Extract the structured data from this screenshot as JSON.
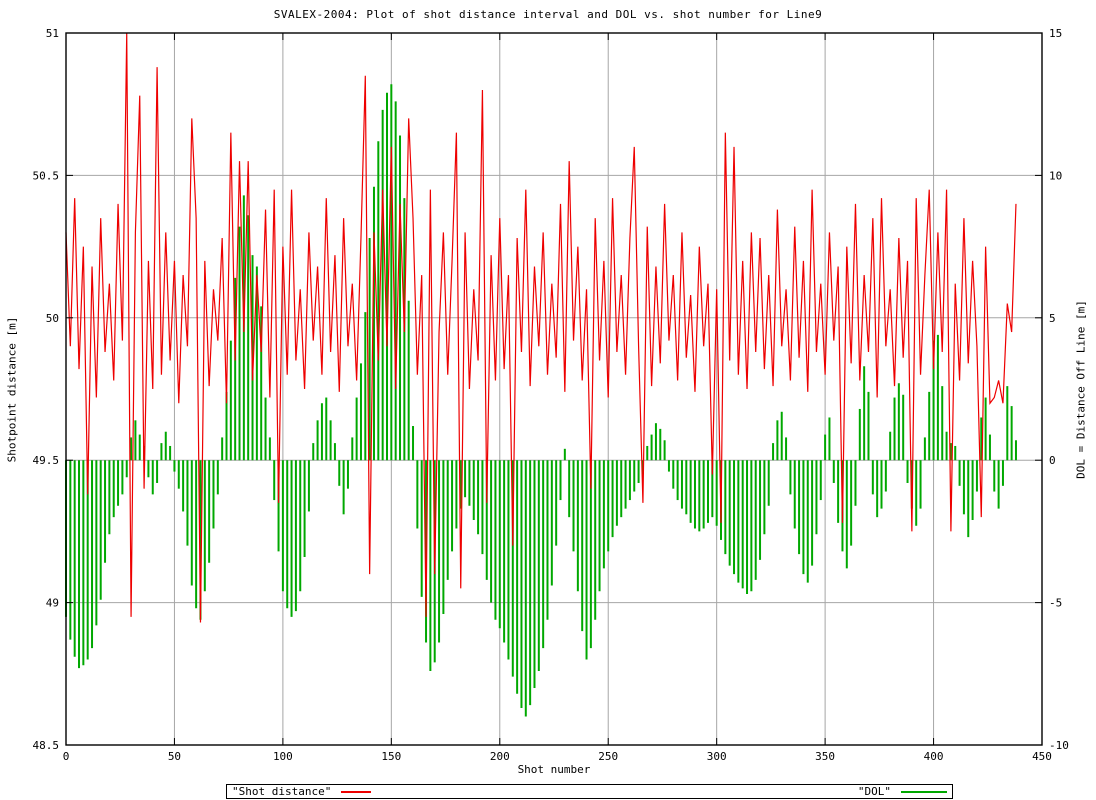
{
  "title": "SVALEX-2004: Plot of shot distance interval and DOL vs. shot number for Line9",
  "colors": {
    "red": "#ee0000",
    "green": "#00a800",
    "grid": "#a6a6a6",
    "border": "#000000",
    "background": "#ffffff",
    "text": "#000000"
  },
  "legend": {
    "items": [
      {
        "label": "\"Shot distance\"",
        "color": "#ee0000"
      },
      {
        "label": "\"DOL\"",
        "color": "#00a800"
      }
    ]
  },
  "chart_data": {
    "type": "line",
    "title": "SVALEX-2004: Plot of shot distance interval and DOL vs. shot number for Line9",
    "xlabel": "Shot number",
    "ylabel_left": "Shotpoint distance [m]",
    "ylabel_right": "DOL = Distance Off Line [m]",
    "x_range": [
      0,
      450
    ],
    "y_left_range": [
      48.5,
      51
    ],
    "y_right_range": [
      -10,
      15
    ],
    "x_ticks": [
      0,
      50,
      100,
      150,
      200,
      250,
      300,
      350,
      400,
      450
    ],
    "y_left_ticks": [
      48.5,
      49,
      49.5,
      50,
      50.5,
      51
    ],
    "y_right_ticks": [
      -10,
      -5,
      0,
      5,
      10,
      15
    ],
    "grid": true,
    "legend_position": "bottom",
    "x_start": 0,
    "x_step": 2,
    "series": [
      {
        "name": "Shot distance",
        "style": "line",
        "axis": "left",
        "color": "#ee0000",
        "values": [
          50.3,
          49.9,
          50.42,
          49.82,
          50.25,
          49.38,
          50.18,
          49.72,
          50.35,
          49.88,
          50.12,
          49.78,
          50.4,
          49.92,
          51.0,
          48.95,
          50.3,
          50.78,
          49.4,
          50.2,
          49.75,
          50.88,
          49.8,
          50.3,
          49.85,
          50.2,
          49.7,
          50.15,
          49.9,
          50.7,
          50.35,
          48.93,
          50.2,
          49.76,
          50.1,
          49.92,
          50.28,
          49.7,
          50.65,
          49.85,
          50.55,
          49.95,
          50.55,
          49.78,
          50.15,
          49.88,
          50.38,
          49.72,
          50.45,
          49.35,
          50.25,
          49.8,
          50.45,
          49.85,
          50.1,
          49.75,
          50.3,
          49.92,
          50.18,
          49.8,
          50.42,
          49.88,
          50.22,
          49.74,
          50.35,
          49.9,
          50.12,
          49.78,
          50.28,
          50.85,
          49.1,
          50.3,
          49.85,
          50.45,
          49.9,
          50.6,
          49.75,
          50.4,
          49.95,
          50.7,
          50.35,
          49.8,
          50.15,
          48.95,
          50.45,
          49.1,
          49.95,
          50.3,
          49.8,
          50.2,
          50.65,
          49.05,
          50.3,
          49.75,
          50.1,
          49.85,
          50.8,
          49.35,
          50.22,
          49.78,
          50.35,
          49.82,
          50.15,
          49.2,
          50.28,
          49.88,
          50.45,
          49.76,
          50.18,
          49.9,
          50.3,
          49.8,
          50.12,
          49.86,
          50.4,
          49.74,
          50.55,
          49.92,
          50.25,
          49.78,
          50.1,
          49.4,
          50.35,
          49.85,
          50.2,
          49.72,
          50.42,
          49.88,
          50.15,
          49.8,
          50.28,
          50.6,
          49.9,
          49.35,
          50.32,
          49.76,
          50.18,
          49.84,
          50.4,
          49.92,
          50.15,
          49.78,
          50.3,
          49.86,
          50.08,
          49.74,
          50.25,
          49.9,
          50.12,
          49.45,
          50.1,
          49.28,
          50.65,
          49.85,
          50.6,
          49.8,
          50.2,
          49.75,
          50.3,
          49.88,
          50.28,
          49.82,
          50.15,
          49.76,
          50.38,
          49.9,
          50.1,
          49.78,
          50.32,
          49.86,
          50.2,
          49.74,
          50.45,
          49.88,
          50.12,
          49.8,
          50.3,
          49.92,
          50.18,
          49.28,
          50.25,
          49.84,
          50.4,
          49.78,
          50.15,
          49.88,
          50.35,
          49.72,
          50.42,
          49.9,
          50.1,
          49.76,
          50.28,
          49.86,
          50.2,
          49.25,
          50.42,
          49.8,
          50.15,
          50.45,
          49.82,
          50.3,
          49.88,
          50.45,
          49.25,
          50.12,
          49.78,
          50.35,
          49.84,
          50.2,
          49.9,
          49.3,
          50.25,
          49.7,
          49.72,
          49.78,
          49.7,
          50.05,
          49.95,
          50.4
        ]
      },
      {
        "name": "DOL",
        "style": "impulses",
        "axis": "right",
        "color": "#00a800",
        "values": [
          -5.5,
          -6.3,
          -6.9,
          -7.3,
          -7.2,
          -7.0,
          -6.6,
          -5.8,
          -4.9,
          -3.6,
          -2.6,
          -2.0,
          -1.6,
          -1.2,
          -0.6,
          0.8,
          1.4,
          0.9,
          0.5,
          -0.6,
          -1.2,
          -0.8,
          0.6,
          1.0,
          0.5,
          -0.4,
          -1.0,
          -1.8,
          -3.0,
          -4.4,
          -5.2,
          -5.6,
          -4.6,
          -3.6,
          -2.4,
          -1.2,
          0.8,
          2.4,
          4.2,
          6.4,
          8.2,
          9.3,
          8.6,
          7.2,
          6.8,
          5.4,
          2.2,
          0.8,
          -1.4,
          -3.2,
          -4.6,
          -5.2,
          -5.5,
          -5.3,
          -4.6,
          -3.4,
          -1.8,
          0.6,
          1.4,
          2.0,
          2.2,
          1.4,
          0.6,
          -0.9,
          -1.9,
          -1.0,
          0.8,
          2.2,
          3.4,
          5.2,
          7.8,
          9.6,
          11.2,
          12.3,
          12.9,
          13.2,
          12.6,
          11.4,
          9.2,
          5.6,
          1.2,
          -2.4,
          -4.8,
          -6.4,
          -7.4,
          -7.1,
          -6.4,
          -5.4,
          -4.2,
          -3.2,
          -2.4,
          -1.7,
          -1.3,
          -1.6,
          -2.1,
          -2.6,
          -3.3,
          -4.2,
          -5.0,
          -5.6,
          -5.9,
          -6.4,
          -7.0,
          -7.6,
          -8.2,
          -8.7,
          -9.0,
          -8.6,
          -8.0,
          -7.4,
          -6.6,
          -5.6,
          -4.4,
          -3.0,
          -1.4,
          0.4,
          -2.0,
          -3.2,
          -4.6,
          -6.0,
          -7.0,
          -6.6,
          -5.6,
          -4.6,
          -3.8,
          -3.2,
          -2.7,
          -2.3,
          -2.0,
          -1.7,
          -1.4,
          -1.1,
          -0.8,
          -0.5,
          0.5,
          0.9,
          1.3,
          1.1,
          0.7,
          -0.4,
          -1.0,
          -1.4,
          -1.7,
          -1.9,
          -2.2,
          -2.4,
          -2.5,
          -2.4,
          -2.2,
          -2.0,
          -2.3,
          -2.8,
          -3.3,
          -3.7,
          -4.0,
          -4.3,
          -4.5,
          -4.7,
          -4.6,
          -4.2,
          -3.5,
          -2.6,
          -1.6,
          0.6,
          1.4,
          1.7,
          0.8,
          -1.2,
          -2.4,
          -3.3,
          -4.0,
          -4.3,
          -3.7,
          -2.6,
          -1.4,
          0.9,
          1.5,
          -0.8,
          -2.2,
          -3.2,
          -3.8,
          -3.0,
          -1.6,
          1.8,
          3.3,
          2.4,
          -1.2,
          -2.0,
          -1.7,
          -1.1,
          1.0,
          2.2,
          2.7,
          2.3,
          -0.8,
          -1.7,
          -2.3,
          -1.7,
          0.8,
          2.4,
          4.2,
          4.4,
          2.6,
          1.0,
          0.6,
          0.5,
          -0.9,
          -1.9,
          -2.7,
          -2.1,
          -1.1,
          1.5,
          2.2,
          0.9,
          -1.1,
          -1.7,
          -0.9,
          2.6,
          1.9,
          0.7
        ]
      }
    ]
  }
}
